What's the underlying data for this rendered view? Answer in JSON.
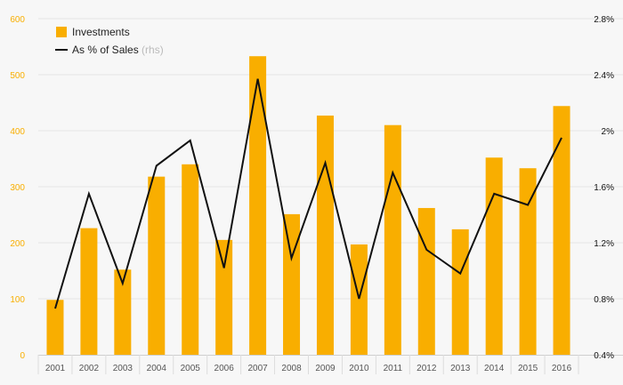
{
  "chart_data": {
    "type": "bar",
    "categories": [
      "2001",
      "2002",
      "2003",
      "2004",
      "2005",
      "2006",
      "2007",
      "2008",
      "2009",
      "2010",
      "2011",
      "2012",
      "2013",
      "2014",
      "2015",
      "2016"
    ],
    "series": [
      {
        "name": "Investments",
        "type": "bar",
        "axis": "left",
        "color": "#f9ae00",
        "values": [
          98,
          226,
          152,
          318,
          340,
          205,
          533,
          251,
          427,
          197,
          410,
          262,
          224,
          352,
          333,
          444
        ]
      },
      {
        "name": "As % of Sales",
        "name_suffix": "(rhs)",
        "type": "line",
        "axis": "right",
        "color": "#111111",
        "values": [
          0.73,
          1.55,
          0.91,
          1.75,
          1.93,
          1.02,
          2.37,
          1.09,
          1.77,
          0.8,
          1.7,
          1.15,
          0.98,
          1.55,
          1.47,
          1.95
        ]
      }
    ],
    "y_left": {
      "min": 0,
      "max": 600,
      "ticks": [
        0,
        100,
        200,
        300,
        400,
        500,
        600
      ],
      "tick_labels": [
        "0",
        "100",
        "200",
        "300",
        "400",
        "500",
        "600"
      ],
      "color": "#f9ae00"
    },
    "y_right": {
      "min": 0.4,
      "max": 2.8,
      "ticks": [
        0.4,
        0.8,
        1.2,
        1.6,
        2.0,
        2.4,
        2.8
      ],
      "tick_labels": [
        "0.4%",
        "0.8%",
        "1.2%",
        "1.6%",
        "2%",
        "2.4%",
        "2.8%"
      ],
      "color": "#111111"
    },
    "legend": {
      "position": "top-left"
    },
    "grid": true,
    "title": "",
    "xlabel": "",
    "ylabel": ""
  }
}
